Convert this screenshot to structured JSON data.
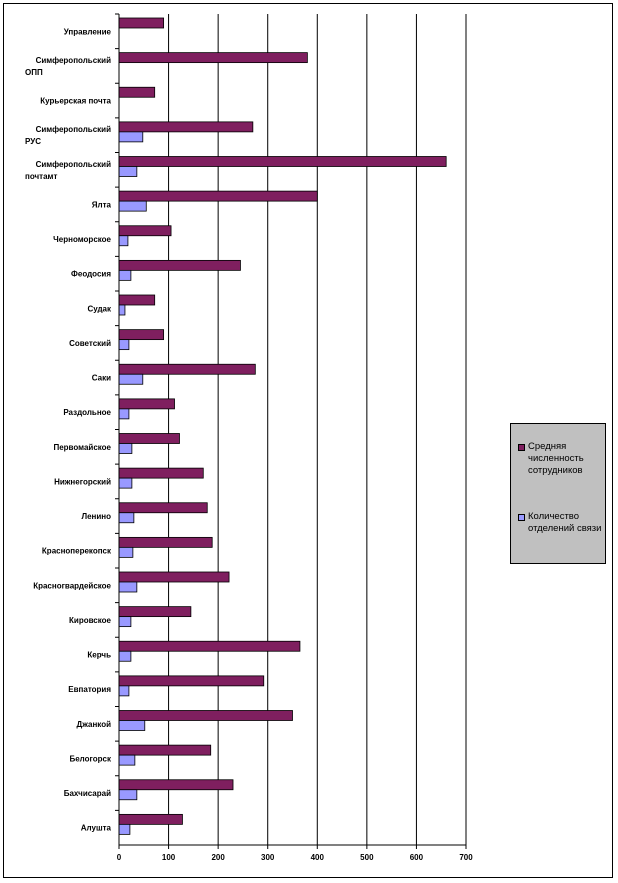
{
  "chart_data": {
    "type": "bar",
    "orientation": "horizontal",
    "categories": [
      "Управление",
      "Симферопольский ОПП",
      "Курьерская почта",
      "Симферопольский РУС",
      "Симферопольский почтамт",
      "Ялта",
      "Черноморское",
      "Феодосия",
      "Судак",
      "Советский",
      "Саки",
      "Раздольное",
      "Первомайское",
      "Нижнегорский",
      "Ленино",
      "Красноперекопск",
      "Красногвардейское",
      "Кировское",
      "Керчь",
      "Евпатория",
      "Джанкой",
      "Белогорск",
      "Бахчисарай",
      "Алушта"
    ],
    "category_lines": [
      [
        "Управление"
      ],
      [
        "Симферопольский",
        "ОПП"
      ],
      [
        "Курьерская почта"
      ],
      [
        "Симферопольский",
        "РУС"
      ],
      [
        "Симферопольский",
        "почтамт"
      ],
      [
        "Ялта"
      ],
      [
        "Черноморское"
      ],
      [
        "Феодосия"
      ],
      [
        "Судак"
      ],
      [
        "Советский"
      ],
      [
        "Саки"
      ],
      [
        "Раздольное"
      ],
      [
        "Первомайское"
      ],
      [
        "Нижнегорский"
      ],
      [
        "Ленино"
      ],
      [
        "Красноперекопск"
      ],
      [
        "Красногвардейское"
      ],
      [
        "Кировское"
      ],
      [
        "Керчь"
      ],
      [
        "Евпатория"
      ],
      [
        "Джанкой"
      ],
      [
        "Белогорск"
      ],
      [
        "Бахчисарай"
      ],
      [
        "Алушта"
      ]
    ],
    "series": [
      {
        "name": "Средняя численность сотрудников",
        "color": "#7f1f5f",
        "values": [
          90,
          380,
          72,
          270,
          660,
          400,
          105,
          245,
          72,
          90,
          275,
          112,
          122,
          170,
          178,
          188,
          222,
          145,
          365,
          292,
          350,
          185,
          230,
          128
        ]
      },
      {
        "name": "Количество отделений связи",
        "color": "#9999ff",
        "values": [
          0,
          0,
          0,
          48,
          36,
          55,
          18,
          24,
          12,
          20,
          48,
          20,
          26,
          26,
          30,
          28,
          36,
          24,
          24,
          20,
          52,
          32,
          36,
          22
        ]
      }
    ],
    "xlim": [
      0,
      700
    ],
    "x_ticks": [
      0,
      100,
      200,
      300,
      400,
      500,
      600,
      700
    ],
    "title": "",
    "xlabel": "",
    "ylabel": "",
    "grid": "vertical",
    "legend_position": "right"
  },
  "legend": {
    "items": [
      {
        "label": "Средняя численность сотрудников",
        "color": "#7f1f5f"
      },
      {
        "label": "Количество отделений связи",
        "color": "#9999ff"
      }
    ]
  }
}
